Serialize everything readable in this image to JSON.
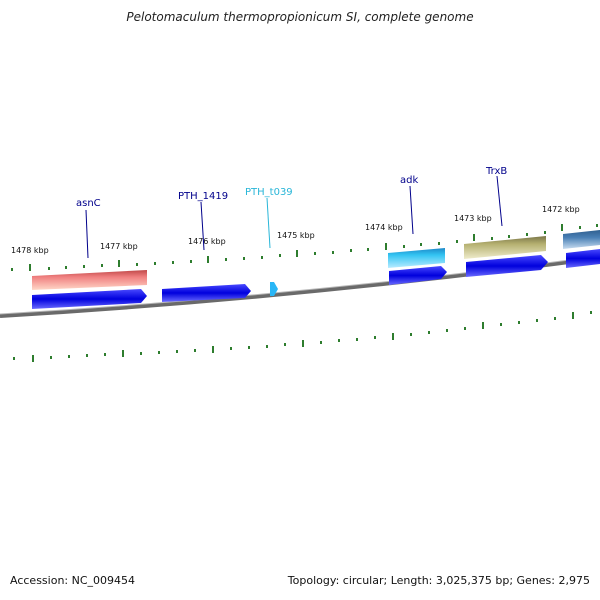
{
  "title": "Pelotomaculum thermopropionicum SI, complete genome",
  "footer": {
    "accession_label": "Accession:",
    "accession": "NC_009454",
    "topology_label": "Topology:",
    "topology": "circular",
    "length_label": "Length:",
    "length": "3,025,375 bp",
    "genes_label": "Genes:",
    "genes": "2,975"
  },
  "colors": {
    "backbone": "#7a7a7a",
    "tick": "#2e7d2e",
    "cds": "#0000dd",
    "label_dark": "#00008b",
    "label_light": "#29b6d8"
  },
  "ticks": [
    {
      "label": "1478 kbp"
    },
    {
      "label": "1477 kbp"
    },
    {
      "label": "1476 kbp"
    },
    {
      "label": "1475 kbp"
    },
    {
      "label": "1474 kbp"
    },
    {
      "label": "1473 kbp"
    },
    {
      "label": "1472 kbp"
    }
  ],
  "features": [
    {
      "name": "asnC",
      "type": "gene",
      "color": "#f08080"
    },
    {
      "name": "PTH_1419",
      "type": "gene",
      "color": "#0000dd"
    },
    {
      "name": "PTH_t039",
      "type": "tRNA",
      "color": "#29b6f6"
    },
    {
      "name": "adk",
      "type": "gene",
      "color": "#29b6f6"
    },
    {
      "name": "TrxB",
      "type": "gene",
      "color": "#b5b070"
    },
    {
      "name": "",
      "type": "gene",
      "color": "#4a80b5"
    }
  ]
}
